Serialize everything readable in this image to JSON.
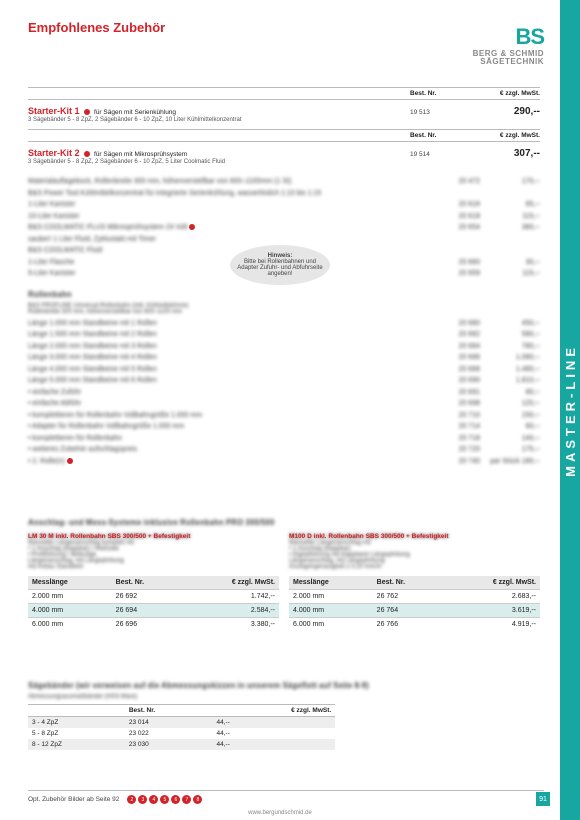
{
  "sidebar": "MASTER-LINE",
  "logo": {
    "bs": "BS",
    "l1": "BERG & SCHMID",
    "l2": "SÄGETECHNIK"
  },
  "title": "Empfohlenes Zubehör",
  "headers": {
    "best": "Best. Nr.",
    "price": "€ zzgl. MwSt."
  },
  "kits": [
    {
      "name": "Starter-Kit 1",
      "desc": "für Sägen mit Serienkühlung",
      "sub": "3 Sägebänder 5 - 8 ZpZ, 2 Sägebänder 6 - 10 ZpZ, 10 Liter Kühlmittelkonzentrat",
      "nr": "19 513",
      "price": "290,--"
    },
    {
      "name": "Starter-Kit 2",
      "desc": "für Sägen mit Mikrosprühsystem",
      "sub": "3 Sägebänder 5 - 8 ZpZ, 2 Sägebänder 6 - 10 ZpZ, 5 Liter Coolmatic Fluid",
      "nr": "19 514",
      "price": "307,--"
    }
  ],
  "blurTop": [
    {
      "t": "Materialauflagebock, Rollenbreite 300 mm, höhenverstellbar von 600–1100mm (1 St)",
      "n": "20 472",
      "p": "170,--"
    },
    {
      "t": "B&S Power Tool Kühlmittelkonzentrat für integrierte Serienkühlung, wasserlöslich 1:10 bis 1:15",
      "n": "",
      "p": ""
    },
    {
      "t": "1-Liter Kanister",
      "n": "20 616",
      "p": "65,--"
    },
    {
      "t": "10-Liter Kanister",
      "n": "20 618",
      "p": "115,--"
    },
    {
      "t": "B&S COOLMATIC PLUS Mikrosprühsystem 24 Volt",
      "n": "20 654",
      "p": "380,--"
    },
    {
      "t": "sauber! 1 Liter Fluid, Zyklustakt mit Timer",
      "n": "",
      "p": ""
    },
    {
      "t": "B&S COOLMATIC Fluid",
      "n": "",
      "p": ""
    },
    {
      "t": "1-Liter Flasche",
      "n": "20 660",
      "p": "30,--"
    },
    {
      "t": "5-Liter Kanister",
      "n": "20 659",
      "p": "115,--"
    }
  ],
  "hint": {
    "h": "Hinweis:",
    "t": "Bitte bei Rollenbahnen und Adapter Zufuhr- und Abfuhrseite angeben!"
  },
  "roll": {
    "title": "Rollenbahn",
    "sub1": "B&S PROFLINE Universal-Rollenbahn (inkl. Kühlmittelrinne)",
    "sub2": "Rollenbreite 300 mm, höhenverstellbar von 600–1100 mm",
    "rows": [
      {
        "t": "Länge 1.000 mm Standbeine mit 1 Rollen",
        "n": "20 680",
        "p": "450,--"
      },
      {
        "t": "Länge 1.500 mm Standbeine mit 2 Rollen",
        "n": "20 682",
        "p": "580,--"
      },
      {
        "t": "Länge 2.000 mm Standbeine mit 3 Rollen",
        "n": "20 684",
        "p": "780,--"
      },
      {
        "t": "Länge 3.000 mm Standbeine mit 4 Rollen",
        "n": "20 686",
        "p": "1.080,--"
      },
      {
        "t": "Länge 4.000 mm Standbeine mit 5 Rollen",
        "n": "20 688",
        "p": "1.480,--"
      },
      {
        "t": "Länge 5.000 mm Standbeine mit 6 Rollen",
        "n": "20 690",
        "p": "1.810,--"
      },
      {
        "t": "• einfache Zuführ",
        "n": "20 691",
        "p": "80,--"
      },
      {
        "t": "• einfache Abführ",
        "n": "20 698",
        "p": "120,--"
      },
      {
        "t": "• komplettieren für Rollenbahn Vollbahngröße 1.000 mm",
        "n": "20 710",
        "p": "150,--"
      },
      {
        "t": "• Adapter für Rollenbahn Vollbahngröße 1.000 mm",
        "n": "20 714",
        "p": "60,--"
      },
      {
        "t": "• komplettieren für Rollenbahn",
        "n": "20 718",
        "p": "140,--"
      },
      {
        "t": "• weiteres Zubehör aufschlagspreis",
        "n": "20 720",
        "p": "175,--"
      },
      {
        "t": "• 2. Rolle(n)",
        "n": "20 740",
        "p": "par Stück 180,--"
      }
    ]
  },
  "anschlag": {
    "title": "Anschlag- und Mess-Systeme inklusive Rollenbahn PRO 300/500",
    "left": {
      "head": "LM 30 M inkl. Rollenbahn SBS 300/500 + Befestigkeit",
      "lines": [
        "Manueller Längenanschlag komplett mit",
        "• 1 Anschlag (klappbar)  • Maßstab",
        "• Profilführung  • Befestigk.",
        "Längenanschlag, mit Längephrbung",
        "mit Anbau Standbein"
      ]
    },
    "right": {
      "head": "M100 D inkl. Rollenbahn SBS 300/500 + Befestigkeit",
      "lines": [
        "Manueller Längenanschlag mit",
        "• 1 Anschlag (klappbar)",
        "• Digitalführung mit klappbarer Längephrbung",
        "Längenanschlag, mit Längephrbung",
        "Anzeigengenauigkeit ± 0,10 mm/m"
      ]
    },
    "t1head": [
      "Messlänge",
      "Best. Nr.",
      "€ zzgl. MwSt."
    ],
    "t1": [
      [
        "2.000 mm",
        "26 692",
        "1.742,--"
      ],
      [
        "4.000 mm",
        "26 694",
        "2.584,--"
      ],
      [
        "6.000 mm",
        "26 696",
        "3.380,--"
      ]
    ],
    "t2": [
      [
        "2.000 mm",
        "26 762",
        "2.683,--"
      ],
      [
        "4.000 mm",
        "26 764",
        "3.619,--"
      ],
      [
        "6.000 mm",
        "26 766",
        "4.919,--"
      ]
    ]
  },
  "saw": {
    "title": "Sägebänder (wir verweisen auf die Abmessungskizzen in unserem Sägeflott auf Seite 8-9)",
    "sub": "Abmessungsausmaßbänder (HSS-Ware)",
    "head": [
      "",
      "Best. Nr.",
      "€ zzgl. MwSt."
    ],
    "rows": [
      [
        "3 - 4 ZpZ",
        "23 014",
        "44,--"
      ],
      [
        "5 - 8 ZpZ",
        "23 022",
        "44,--"
      ],
      [
        "8 - 12 ZpZ",
        "23 030",
        "44,--"
      ]
    ]
  },
  "footer": {
    "text": "Opt. Zubehör Bilder ab Seite 92",
    "pages": [
      "2",
      "3",
      "4",
      "5",
      "6",
      "7",
      "8"
    ],
    "url": "www.bergundschmid.de",
    "page": "91"
  }
}
